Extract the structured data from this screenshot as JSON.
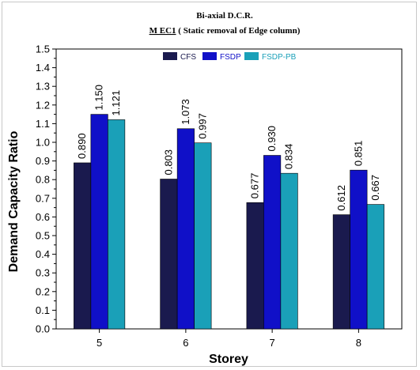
{
  "chart_data": {
    "type": "bar",
    "title": "Bi-axial D.C.R.",
    "subtitle_underlined": "M EC1",
    "subtitle_rest": " ( Static removal of Edge column)",
    "xlabel": "Storey",
    "ylabel": "Demand Capacity Ratio",
    "categories": [
      "5",
      "6",
      "7",
      "8"
    ],
    "ylim": [
      0,
      1.5
    ],
    "yticks": [
      "0.0",
      "0.1",
      "0.2",
      "0.3",
      "0.4",
      "0.5",
      "0.6",
      "0.7",
      "0.8",
      "0.9",
      "1.0",
      "1.1",
      "1.2",
      "1.3",
      "1.4",
      "1.5"
    ],
    "legend_position": "top-center",
    "grid": false,
    "series": [
      {
        "name": "CFS",
        "color": "#1a1a4e",
        "values": [
          0.89,
          0.803,
          0.677,
          0.612
        ],
        "labels": [
          "0.890",
          "0.803",
          "0.677",
          "0.612"
        ]
      },
      {
        "name": "FSDP",
        "color": "#1010c8",
        "values": [
          1.15,
          1.073,
          0.93,
          0.851
        ],
        "labels": [
          "1.150",
          "1.073",
          "0.930",
          "0.851"
        ]
      },
      {
        "name": "FSDP-PB",
        "color": "#1aa0b8",
        "values": [
          1.121,
          0.997,
          0.834,
          0.667
        ],
        "labels": [
          "1.121",
          "0.997",
          "0.834",
          "0.667"
        ]
      }
    ]
  }
}
